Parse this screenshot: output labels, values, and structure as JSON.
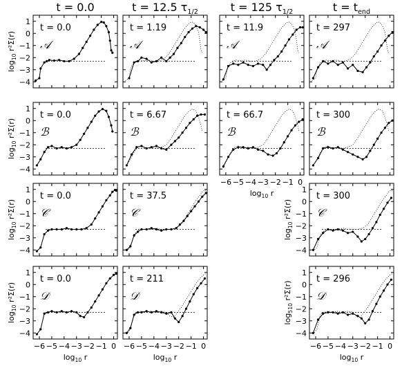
{
  "column_titles": [
    "t = 0.0",
    "t = 12.5 τ",
    "t = 125 τ",
    "t = t"
  ],
  "column_title_subscripts": [
    "",
    "1/2",
    "1/2",
    "end"
  ],
  "row_models": [
    "𝒜",
    "ℬ",
    "𝒞",
    "𝒟"
  ],
  "axis": {
    "ylabel_base": "log",
    "ylabel_sub": "10",
    "ylabel_expr": "r²Σ(r)",
    "ylabel_alt_sub": "510",
    "xlabel_base": "log",
    "xlabel_sub": "10",
    "xlabel_var": "r",
    "yticks": [
      "1",
      "0",
      "−1",
      "−2",
      "−3",
      "−4"
    ],
    "xticks": [
      "−6",
      "−5",
      "−4",
      "−3",
      "−2",
      "−1",
      "0"
    ]
  },
  "chart_data": {
    "type": "scatter",
    "xlim": [
      -6.5,
      0.3
    ],
    "ylim": [
      -4.5,
      1.5
    ],
    "reference_level": -2.3,
    "panels": [
      {
        "row": 0,
        "col": 0,
        "model": "A",
        "time_label": "t = 0.0",
        "xticks": false,
        "yaxis": "left",
        "dotted": false,
        "x": [
          -6.3,
          -6.0,
          -5.9,
          -5.6,
          -5.4,
          -5.2,
          -4.8,
          -4.4,
          -4.0,
          -3.6,
          -3.2,
          -2.8,
          -2.5,
          -2.2,
          -1.9,
          -1.6,
          -1.3,
          -1.0,
          -0.8,
          -0.6,
          -0.4,
          -0.3,
          -0.2,
          -0.1
        ],
        "y": [
          -3.9,
          -3.7,
          -2.9,
          -2.4,
          -2.3,
          -2.2,
          -2.25,
          -2.2,
          -2.3,
          -2.3,
          -2.1,
          -1.7,
          -1.2,
          -0.7,
          -0.2,
          0.3,
          0.7,
          0.95,
          0.9,
          0.6,
          0.1,
          -0.6,
          -1.4,
          -1.6
        ]
      },
      {
        "row": 0,
        "col": 1,
        "model": "A",
        "time_label": "t = 1.19",
        "xticks": false,
        "yaxis": "none",
        "dotted": true,
        "x": [
          -6.0,
          -5.6,
          -5.3,
          -5.0,
          -4.6,
          -4.2,
          -3.8,
          -3.4,
          -3.0,
          -2.7,
          -2.4,
          -2.1,
          -1.8,
          -1.5,
          -1.2,
          -0.9,
          -0.6,
          -0.3,
          0.0,
          0.2
        ],
        "y": [
          -3.7,
          -2.4,
          -2.3,
          -2.0,
          -2.1,
          -2.4,
          -2.3,
          -2.0,
          -2.3,
          -2.0,
          -1.7,
          -1.2,
          -0.8,
          -0.3,
          0.1,
          0.4,
          0.6,
          0.5,
          0.3,
          0.1
        ]
      },
      {
        "row": 0,
        "col": 2,
        "model": "A",
        "time_label": "t = 11.9",
        "xticks": false,
        "yaxis": "none",
        "dotted": true,
        "x": [
          -6.2,
          -5.8,
          -5.4,
          -5.0,
          -4.6,
          -4.2,
          -3.8,
          -3.4,
          -3.0,
          -2.7,
          -2.4,
          -2.1,
          -1.8,
          -1.5,
          -1.2,
          -0.9,
          -0.6,
          -0.3,
          0.0,
          0.2
        ],
        "y": [
          -3.8,
          -2.7,
          -2.5,
          -2.6,
          -2.4,
          -2.6,
          -2.7,
          -2.5,
          -2.6,
          -3.0,
          -2.6,
          -2.2,
          -1.9,
          -1.5,
          -1.0,
          -0.5,
          -0.1,
          0.3,
          0.5,
          0.5
        ]
      },
      {
        "row": 0,
        "col": 3,
        "model": "A",
        "time_label": "t = 297",
        "xticks": false,
        "yaxis": "none",
        "dotted": true,
        "x": [
          -6.2,
          -5.8,
          -5.4,
          -5.0,
          -4.6,
          -4.2,
          -3.8,
          -3.4,
          -3.0,
          -2.6,
          -2.2,
          -1.9,
          -1.6,
          -1.3,
          -1.0,
          -0.7,
          -0.4,
          -0.1,
          0.2
        ],
        "y": [
          -3.7,
          -2.8,
          -2.3,
          -2.5,
          -2.3,
          -2.6,
          -2.4,
          -2.9,
          -2.6,
          -3.1,
          -3.2,
          -2.8,
          -2.4,
          -1.9,
          -1.5,
          -1.0,
          -0.6,
          -0.2,
          0.1
        ]
      },
      {
        "row": 1,
        "col": 0,
        "model": "B",
        "time_label": "t = 0.0",
        "xticks": false,
        "yaxis": "left",
        "dotted": false,
        "x": [
          -6.2,
          -5.9,
          -5.6,
          -5.3,
          -5.0,
          -4.6,
          -4.2,
          -3.8,
          -3.4,
          -3.0,
          -2.7,
          -2.4,
          -2.1,
          -1.8,
          -1.5,
          -1.2,
          -0.9,
          -0.6,
          -0.4,
          -0.2,
          -0.1
        ],
        "y": [
          -3.7,
          -3.2,
          -2.6,
          -2.2,
          -2.1,
          -2.3,
          -2.2,
          -2.3,
          -2.2,
          -2.0,
          -1.6,
          -1.1,
          -0.6,
          -0.1,
          0.4,
          0.75,
          0.95,
          0.8,
          0.3,
          -0.4,
          -0.9
        ]
      },
      {
        "row": 1,
        "col": 1,
        "model": "B",
        "time_label": "t = 6.67",
        "xticks": false,
        "yaxis": "none",
        "dotted": true,
        "x": [
          -6.2,
          -5.8,
          -5.4,
          -5.0,
          -4.6,
          -4.2,
          -3.8,
          -3.4,
          -3.0,
          -2.6,
          -2.3,
          -2.0,
          -1.7,
          -1.4,
          -1.1,
          -0.8,
          -0.5,
          -0.2,
          0.1
        ],
        "y": [
          -3.7,
          -2.8,
          -2.2,
          -2.1,
          -2.3,
          -2.2,
          -2.1,
          -2.3,
          -2.4,
          -2.0,
          -1.7,
          -1.4,
          -1.0,
          -0.6,
          -0.2,
          0.1,
          0.4,
          0.5,
          0.5
        ]
      },
      {
        "row": 1,
        "col": 2,
        "model": "B",
        "time_label": "t = 66.7",
        "xticks": true,
        "yaxis": "none",
        "dotted": true,
        "x": [
          -6.2,
          -5.8,
          -5.4,
          -5.0,
          -4.6,
          -4.2,
          -3.8,
          -3.4,
          -3.0,
          -2.6,
          -2.2,
          -1.9,
          -1.6,
          -1.3,
          -1.0,
          -0.7,
          -0.4,
          -0.1,
          0.2
        ],
        "y": [
          -3.8,
          -3.0,
          -2.4,
          -2.2,
          -2.2,
          -2.3,
          -2.2,
          -2.4,
          -2.5,
          -2.8,
          -2.9,
          -2.7,
          -2.3,
          -1.8,
          -1.3,
          -0.8,
          -0.4,
          -0.1,
          0.1
        ]
      },
      {
        "row": 1,
        "col": 3,
        "model": "B",
        "time_label": "t = 300",
        "xticks": false,
        "yaxis": "none",
        "dotted": true,
        "x": [
          -6.2,
          -5.8,
          -5.4,
          -5.0,
          -4.6,
          -4.2,
          -3.8,
          -3.4,
          -3.0,
          -2.6,
          -2.2,
          -1.9,
          -1.6,
          -1.3,
          -1.0,
          -0.7,
          -0.4,
          -0.1,
          0.2
        ],
        "y": [
          -3.7,
          -3.1,
          -2.3,
          -2.2,
          -2.3,
          -2.2,
          -2.4,
          -2.6,
          -2.8,
          -3.0,
          -3.2,
          -3.0,
          -2.5,
          -2.0,
          -1.5,
          -1.0,
          -0.6,
          -0.2,
          0.0
        ]
      },
      {
        "row": 2,
        "col": 0,
        "model": "C",
        "time_label": "t = 0.0",
        "xticks": false,
        "yaxis": "left",
        "dotted": false,
        "x": [
          -6.2,
          -5.9,
          -5.6,
          -5.3,
          -5.0,
          -4.6,
          -4.2,
          -3.8,
          -3.4,
          -3.0,
          -2.6,
          -2.2,
          -1.8,
          -1.5,
          -1.2,
          -0.9,
          -0.6,
          -0.3,
          -0.1,
          0.1,
          0.2
        ],
        "y": [
          -4.1,
          -3.8,
          -2.7,
          -2.4,
          -2.3,
          -2.3,
          -2.3,
          -2.2,
          -2.3,
          -2.3,
          -2.3,
          -2.2,
          -1.9,
          -1.4,
          -0.9,
          -0.4,
          0.1,
          0.5,
          0.8,
          0.95,
          0.9
        ]
      },
      {
        "row": 2,
        "col": 1,
        "model": "C",
        "time_label": "t = 37.5",
        "xticks": false,
        "yaxis": "none",
        "dotted": true,
        "x": [
          -6.2,
          -5.9,
          -5.6,
          -5.3,
          -5.0,
          -4.6,
          -4.2,
          -3.8,
          -3.4,
          -3.0,
          -2.6,
          -2.2,
          -1.9,
          -1.6,
          -1.3,
          -1.0,
          -0.7,
          -0.4,
          -0.1,
          0.2
        ],
        "y": [
          -4.0,
          -3.7,
          -2.8,
          -2.5,
          -2.3,
          -2.3,
          -2.2,
          -2.3,
          -2.4,
          -2.3,
          -2.3,
          -2.2,
          -1.9,
          -1.6,
          -1.2,
          -0.8,
          -0.4,
          0.0,
          0.4,
          0.7
        ]
      },
      {
        "row": 2,
        "col": 3,
        "model": "C",
        "time_label": "t = 300",
        "xticks": false,
        "yaxis": "left",
        "dotted": true,
        "x": [
          -6.2,
          -5.8,
          -5.4,
          -5.0,
          -4.6,
          -4.2,
          -3.8,
          -3.4,
          -3.0,
          -2.6,
          -2.3,
          -2.0,
          -1.7,
          -1.4,
          -1.1,
          -0.8,
          -0.5,
          -0.2,
          0.1
        ],
        "y": [
          -4.0,
          -3.1,
          -2.6,
          -2.3,
          -2.4,
          -2.3,
          -2.4,
          -2.6,
          -2.5,
          -2.9,
          -3.3,
          -3.1,
          -2.7,
          -2.2,
          -1.7,
          -1.1,
          -0.6,
          -0.1,
          0.3
        ]
      },
      {
        "row": 3,
        "col": 0,
        "model": "D",
        "time_label": "t = 0.0",
        "xticks": true,
        "yaxis": "left",
        "dotted": false,
        "x": [
          -6.2,
          -5.9,
          -5.6,
          -5.3,
          -5.0,
          -4.6,
          -4.2,
          -3.8,
          -3.4,
          -3.0,
          -2.7,
          -2.4,
          -2.1,
          -1.8,
          -1.5,
          -1.2,
          -0.9,
          -0.6,
          -0.3,
          0.0,
          0.2
        ],
        "y": [
          -4.1,
          -3.7,
          -2.4,
          -2.3,
          -2.2,
          -2.3,
          -2.2,
          -2.3,
          -2.2,
          -2.3,
          -2.6,
          -2.7,
          -2.3,
          -1.9,
          -1.4,
          -0.9,
          -0.4,
          0.1,
          0.5,
          0.8,
          0.9
        ]
      },
      {
        "row": 3,
        "col": 1,
        "model": "D",
        "time_label": "t = 211",
        "xticks": true,
        "yaxis": "none",
        "dotted": true,
        "x": [
          -6.2,
          -5.9,
          -5.6,
          -5.3,
          -5.0,
          -4.6,
          -4.2,
          -3.8,
          -3.4,
          -3.0,
          -2.6,
          -2.3,
          -2.0,
          -1.7,
          -1.4,
          -1.1,
          -0.8,
          -0.5,
          -0.2,
          0.1
        ],
        "y": [
          -4.0,
          -3.6,
          -2.5,
          -2.3,
          -2.3,
          -2.2,
          -2.3,
          -2.2,
          -2.3,
          -2.4,
          -2.3,
          -2.8,
          -3.1,
          -2.6,
          -2.0,
          -1.4,
          -0.8,
          -0.3,
          0.1,
          0.5
        ]
      },
      {
        "row": 3,
        "col": 3,
        "model": "D",
        "time_label": "t = 296",
        "xticks": true,
        "yaxis": "left-alt",
        "dotted": true,
        "x": [
          -6.2,
          -5.8,
          -5.4,
          -5.0,
          -4.6,
          -4.2,
          -3.8,
          -3.4,
          -3.0,
          -2.6,
          -2.3,
          -2.0,
          -1.7,
          -1.4,
          -1.1,
          -0.8,
          -0.5,
          -0.2,
          0.1
        ],
        "y": [
          -4.0,
          -2.9,
          -2.4,
          -2.3,
          -2.3,
          -2.4,
          -2.3,
          -2.5,
          -2.4,
          -2.6,
          -2.8,
          -3.2,
          -2.9,
          -2.2,
          -1.6,
          -1.0,
          -0.5,
          0.0,
          0.4
        ]
      }
    ]
  }
}
